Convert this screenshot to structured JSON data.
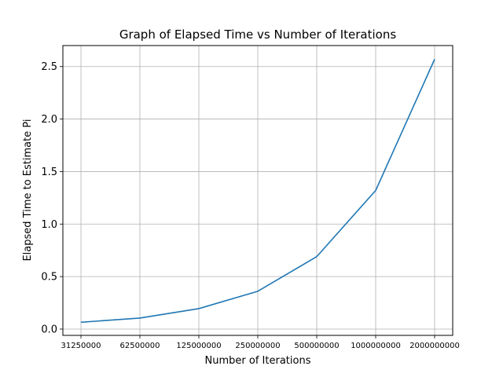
{
  "chart_data": {
    "type": "line",
    "title": "Graph of Elapsed Time vs Number of Iterations",
    "xlabel": "Number of Iterations",
    "ylabel": "Elapsed Time to Estimate Pi",
    "categories": [
      "31250000",
      "62500000",
      "125000000",
      "250000000",
      "500000000",
      "1000000000",
      "2000000000"
    ],
    "series": [
      {
        "values": [
          0.065,
          0.105,
          0.195,
          0.36,
          0.69,
          1.32,
          2.57
        ],
        "color": "#1f77b4"
      }
    ],
    "yticks": [
      "0.0",
      "0.5",
      "1.0",
      "1.5",
      "2.0",
      "2.5"
    ],
    "ylim": [
      -0.06,
      2.7
    ],
    "grid": true,
    "legend": "none"
  }
}
